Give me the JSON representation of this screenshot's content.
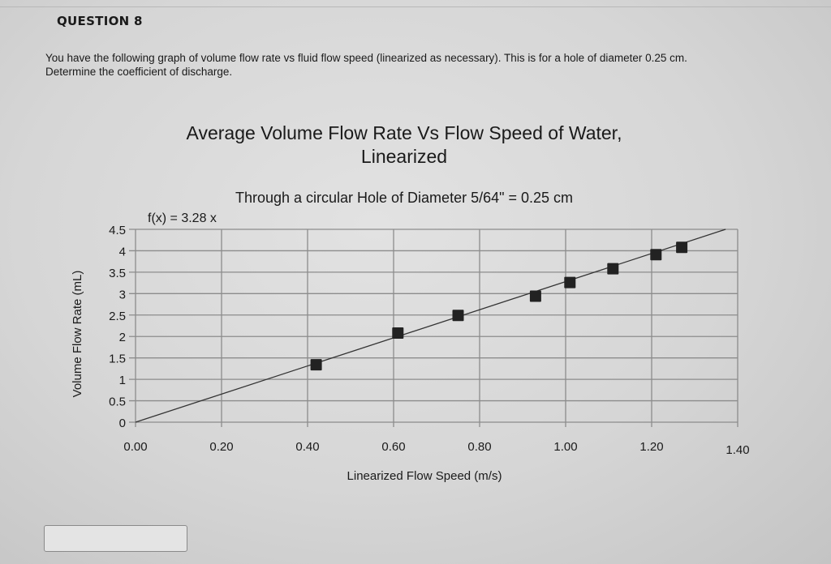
{
  "question": {
    "number": "QUESTION 8",
    "text_line1": "You have the following graph of volume flow rate vs fluid flow speed (linearized as necessary). This is for a hole of diameter 0.25 cm.",
    "text_line2": "Determine the coefficient of discharge.",
    "answer_value": ""
  },
  "chart_data": {
    "type": "scatter",
    "title": "Average Volume Flow Rate Vs Flow Speed of Water,",
    "title_line2": "Linearized",
    "subtitle": "Through a circular Hole of Diameter 5/64\" = 0.25 cm",
    "trendline_label": "f(x) = 3.28 x",
    "trendline_slope": 3.28,
    "xlabel": "Linearized Flow Speed (m/s)",
    "ylabel": "Volume Flow Rate (mL)",
    "xlim": [
      0,
      1.4
    ],
    "ylim": [
      0,
      4.5
    ],
    "xticks": [
      "0.00",
      "0.20",
      "0.40",
      "0.60",
      "0.80",
      "1.00",
      "1.20",
      "1.40"
    ],
    "yticks": [
      "0",
      "0.5",
      "1",
      "1.5",
      "2",
      "2.5",
      "3",
      "3.5",
      "4",
      "4.5"
    ],
    "grid": true,
    "legend": "none",
    "x": [
      0.42,
      0.61,
      0.75,
      0.93,
      1.01,
      1.11,
      1.21,
      1.27
    ],
    "y": [
      1.34,
      2.08,
      2.49,
      2.94,
      3.26,
      3.58,
      3.91,
      4.08
    ],
    "marker_color": "#222222",
    "line_color": "#333333"
  }
}
